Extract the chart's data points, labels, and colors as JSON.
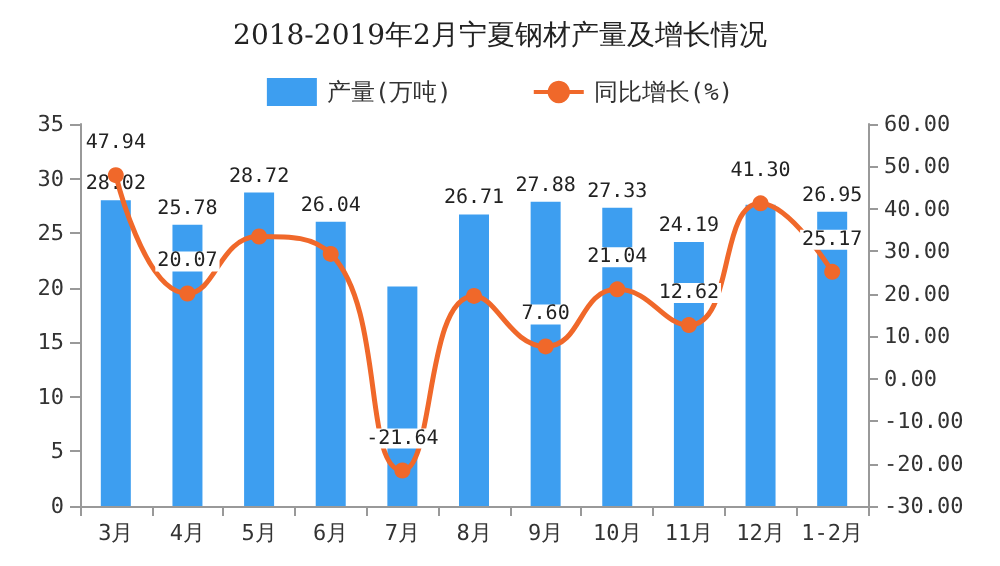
{
  "chart_data": {
    "type": "bar",
    "title": "2018-2019年2月宁夏钢材产量及增长情况",
    "categories": [
      "3月",
      "4月",
      "5月",
      "6月",
      "7月",
      "8月",
      "9月",
      "10月",
      "11月",
      "12月",
      "1-2月"
    ],
    "series": [
      {
        "name": "产量(万吨)",
        "color": "#3d9ef0",
        "values": [
          28.02,
          25.78,
          28.72,
          26.04,
          20.1,
          26.71,
          27.88,
          27.33,
          24.19,
          27.6,
          26.95
        ],
        "value_labels": [
          "28.02",
          "25.78",
          "28.72",
          "26.04",
          null,
          "26.71",
          "27.88",
          "27.33",
          "24.19",
          null,
          "26.95"
        ]
      },
      {
        "name": "同比增长(%)",
        "type": "line",
        "axis": "y2",
        "color": "#f0682a",
        "marker": "circle",
        "values": [
          47.94,
          20.07,
          33.5,
          29.4,
          -21.64,
          19.5,
          7.6,
          21.04,
          12.62,
          41.3,
          25.17
        ],
        "value_labels": [
          "47.94",
          "20.07",
          null,
          null,
          "-21.64",
          null,
          "7.60",
          "21.04",
          "12.62",
          "41.30",
          "25.17"
        ]
      }
    ],
    "ylim": [
      0,
      35
    ],
    "yticks": [
      0,
      5,
      10,
      15,
      20,
      25,
      30,
      35
    ],
    "y2lim": [
      -30,
      60
    ],
    "y2ticks": [
      {
        "value": -30,
        "label": "-30.00"
      },
      {
        "value": -20,
        "label": "-20.00"
      },
      {
        "value": -10,
        "label": "-10.00"
      },
      {
        "value": 0,
        "label": "0.00"
      },
      {
        "value": 10,
        "label": "10.00"
      },
      {
        "value": 20,
        "label": "20.00"
      },
      {
        "value": 30,
        "label": "30.00"
      },
      {
        "value": 40,
        "label": "40.00"
      },
      {
        "value": 50,
        "label": "50.00"
      },
      {
        "value": 60,
        "label": "60.00"
      }
    ],
    "grid": false,
    "legend": "top"
  }
}
